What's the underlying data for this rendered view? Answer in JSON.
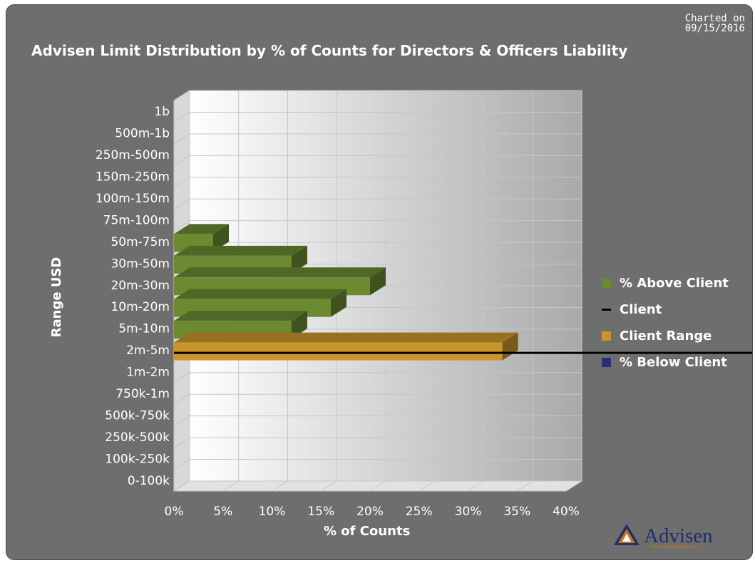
{
  "charted": {
    "label": "Charted on",
    "date": "09/15/2016"
  },
  "logo": {
    "name": "Advisen",
    "tagline": "Transforming Insurance"
  },
  "chart_data": {
    "type": "bar",
    "orientation": "horizontal",
    "three_d": true,
    "title": "Advisen Limit Distribution by % of Counts for Directors & Officers Liability",
    "xlabel": "% of Counts",
    "ylabel": "Range USD",
    "xlim": [
      0,
      40
    ],
    "x_ticks": [
      "0%",
      "5%",
      "10%",
      "15%",
      "20%",
      "25%",
      "30%",
      "35%",
      "40%"
    ],
    "categories": [
      "0-100k",
      "100k-250k",
      "250k-500k",
      "500k-750k",
      "750k-1m",
      "1m-2m",
      "2m-5m",
      "5m-10m",
      "10m-20m",
      "20m-30m",
      "30m-50m",
      "50m-75m",
      "75m-100m",
      "100m-150m",
      "150m-250m",
      "250m-500m",
      "500m-1b",
      "1b"
    ],
    "series": [
      {
        "name": "% Above Client",
        "color": "#6b8a32",
        "values": [
          0,
          0,
          0,
          0,
          0,
          0,
          0,
          12,
          16,
          20,
          12,
          4,
          0,
          0,
          0,
          0,
          0,
          0
        ]
      },
      {
        "name": "Client Range",
        "color": "#c9962a",
        "values": [
          0,
          0,
          0,
          0,
          0,
          0,
          33.5,
          0,
          0,
          0,
          0,
          0,
          0,
          0,
          0,
          0,
          0,
          0
        ]
      },
      {
        "name": "% Below Client",
        "color": "#2a2f7a",
        "values": [
          0,
          0,
          0,
          0,
          0,
          0,
          0,
          0,
          0,
          0,
          0,
          0,
          0,
          0,
          0,
          0,
          0,
          0
        ]
      }
    ],
    "client_line": {
      "name": "Client",
      "category": "2m-5m",
      "color": "#000000"
    },
    "legend": [
      {
        "label": "% Above Client",
        "color": "#6b8a32",
        "kind": "box"
      },
      {
        "label": "Client",
        "color": "#000000",
        "kind": "line"
      },
      {
        "label": "Client Range",
        "color": "#c9962a",
        "kind": "box"
      },
      {
        "label": "% Below Client",
        "color": "#2a2f7a",
        "kind": "box"
      }
    ],
    "legend_position": "right",
    "grid": true
  }
}
